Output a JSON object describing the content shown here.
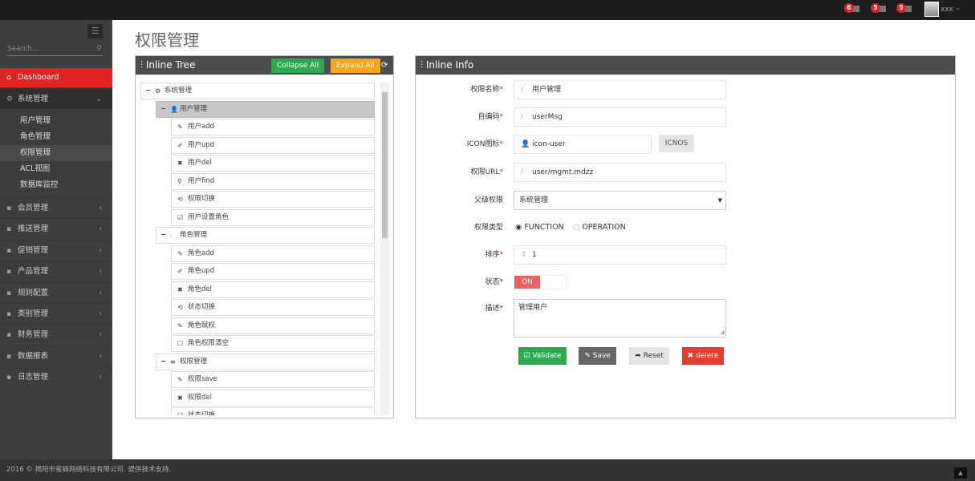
{
  "topbar": {
    "notifications": [
      {
        "count": "6",
        "icon": "warning-icon"
      },
      {
        "count": "5",
        "icon": "envelope-icon"
      },
      {
        "count": "5",
        "icon": "tasks-icon"
      }
    ],
    "user_name": "xxx"
  },
  "sidebar": {
    "search_placeholder": "Search...",
    "dashboard": "Dashboard",
    "open_section": "系统管理",
    "sub_items": [
      "用户管理",
      "角色管理",
      "权限管理",
      "ACL视图",
      "数据库监控"
    ],
    "active_sub": "权限管理",
    "sections": [
      {
        "label": "会员管理",
        "icon": "user-icon"
      },
      {
        "label": "推送管理",
        "icon": "share-icon"
      },
      {
        "label": "促销管理",
        "icon": "pencil-icon"
      },
      {
        "label": "产品管理",
        "icon": "book-icon"
      },
      {
        "label": "规则配置",
        "icon": "list-alt-icon"
      },
      {
        "label": "类别管理",
        "icon": "list-icon"
      },
      {
        "label": "财务管理",
        "icon": "key-icon"
      },
      {
        "label": "数据报表",
        "icon": "bar-chart-icon"
      },
      {
        "label": "日志管理",
        "icon": "credit-card-icon"
      }
    ]
  },
  "page": {
    "title": "权限管理"
  },
  "tree_panel": {
    "title": "Inline Tree",
    "collapse_all": "Collapse All",
    "expand_all": "Expand All",
    "nodes": [
      {
        "level": 0,
        "label": "系统管理",
        "icon": "⚙",
        "toggle": "−"
      },
      {
        "level": 1,
        "label": "用户管理",
        "icon": "👤",
        "toggle": "−",
        "selected": true
      },
      {
        "level": 2,
        "label": "用户add",
        "icon": "✎"
      },
      {
        "level": 2,
        "label": "用户upd",
        "icon": "✐"
      },
      {
        "level": 2,
        "label": "用户del",
        "icon": "✖"
      },
      {
        "level": 2,
        "label": "用户find",
        "icon": "⚲"
      },
      {
        "level": 2,
        "label": "权限切换",
        "icon": "⟲"
      },
      {
        "level": 2,
        "label": "用户设置角色",
        "icon": "☑"
      },
      {
        "level": 1,
        "label": "角色管理",
        "icon": "⫶",
        "toggle": "−"
      },
      {
        "level": 2,
        "label": "角色add",
        "icon": "✎"
      },
      {
        "level": 2,
        "label": "角色upd",
        "icon": "✐"
      },
      {
        "level": 2,
        "label": "角色del",
        "icon": "✖"
      },
      {
        "level": 2,
        "label": "状态切换",
        "icon": "⟲"
      },
      {
        "level": 2,
        "label": "角色赋权",
        "icon": "✎"
      },
      {
        "level": 2,
        "label": "角色权限清空",
        "icon": "☐"
      },
      {
        "level": 1,
        "label": "权限管理",
        "icon": "≡",
        "toggle": "−"
      },
      {
        "level": 2,
        "label": "权限save",
        "icon": "✎"
      },
      {
        "level": 2,
        "label": "权限del",
        "icon": "✖"
      },
      {
        "level": 2,
        "label": "状态切换",
        "icon": "☑"
      }
    ]
  },
  "info_panel": {
    "title": "Inline Info",
    "fields": {
      "name": {
        "label": "权限名称",
        "value": "用户管理"
      },
      "code": {
        "label": "自编码",
        "value": "userMsg"
      },
      "icon": {
        "label": "ICON图标",
        "value": "icon-user",
        "button": "ICNOS"
      },
      "url": {
        "label": "权限URL",
        "value": "user/mgmt.mdzz"
      },
      "parent": {
        "label": "父级权限",
        "value": "系统管理"
      },
      "type": {
        "label": "权限类型",
        "options": [
          "FUNCTION",
          "OPERATION"
        ],
        "selected": "FUNCTION"
      },
      "order": {
        "label": "排序",
        "value": "1"
      },
      "status": {
        "label": "状态",
        "value": "ON"
      },
      "desc": {
        "label": "描述",
        "value": "管理用户"
      }
    },
    "buttons": {
      "validate": "Validate",
      "save": "Save",
      "reset": "Reset",
      "delete": "delete"
    }
  },
  "footer": {
    "text": "2016 © 揭阳市蜜蜂网络科技有限公司. 提供技术支持."
  },
  "colors": {
    "accent_red": "#e02222",
    "green": "#2fa84f",
    "orange": "#f5a623",
    "dark_header": "#4d4d4d"
  }
}
